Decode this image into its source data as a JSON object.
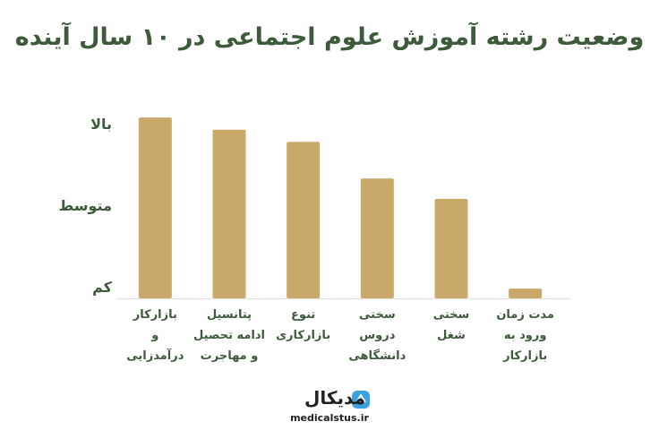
{
  "chart_data": {
    "type": "bar",
    "title": "وضعیت رشته آموزش علوم اجتماعی در ۱۰ سال آینده",
    "categories": [
      "بازارکار\nو\nدرآمدزایی",
      "پتانسیل\nادامه تحصیل\nو مهاجرت",
      "تنوع\nبازارکاری",
      "سختی\nدروس\nدانشگاهی",
      "سختی\nشغل",
      "مدت زمان\nورود به\nبازارکار"
    ],
    "values": [
      3.1,
      2.95,
      2.8,
      2.35,
      2.1,
      1.0
    ],
    "color": "#c8a96a",
    "ylim": [
      0.88,
      3.2
    ],
    "yticks": [
      {
        "value": 1,
        "label": "کم"
      },
      {
        "value": 2,
        "label": "متوسط"
      },
      {
        "value": 3,
        "label": "بالا"
      }
    ],
    "grid": false
  },
  "logo": {
    "name": "مدیکال",
    "url": "medicalstus.ir"
  }
}
